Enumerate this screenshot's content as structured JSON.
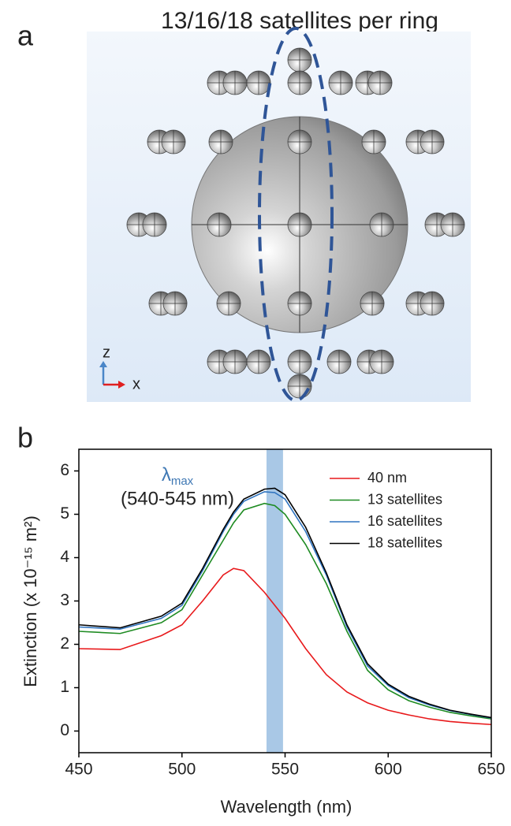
{
  "panel_a": {
    "label": "a",
    "title": "13/16/18 satellites per ring",
    "axis_z": "z",
    "axis_x": "x"
  },
  "panel_b": {
    "label": "b"
  },
  "chart_data": {
    "type": "line",
    "xlabel": "Wavelength (nm)",
    "ylabel": "Extinction (x 10⁻¹⁵ m²)",
    "annotation": {
      "symbol": "λ",
      "subscript": "max",
      "range": "(540-545 nm)",
      "color": "#3f78b4"
    },
    "highlight": [
      541,
      549
    ],
    "highlight_color": "#a9c8e6",
    "x": [
      450,
      470,
      490,
      500,
      510,
      520,
      525,
      530,
      540,
      545,
      550,
      560,
      570,
      580,
      590,
      600,
      610,
      620,
      630,
      640,
      650
    ],
    "series": [
      {
        "name": "40 nm",
        "color": "#e8191b",
        "values": [
          1.9,
          1.88,
          2.2,
          2.45,
          3.0,
          3.6,
          3.75,
          3.7,
          3.2,
          2.9,
          2.6,
          1.9,
          1.3,
          0.9,
          0.65,
          0.48,
          0.37,
          0.28,
          0.22,
          0.18,
          0.15
        ]
      },
      {
        "name": "13 satellites",
        "color": "#1e8b22",
        "values": [
          2.3,
          2.25,
          2.5,
          2.8,
          3.6,
          4.4,
          4.8,
          5.1,
          5.25,
          5.2,
          5.0,
          4.3,
          3.4,
          2.3,
          1.4,
          0.95,
          0.7,
          0.55,
          0.43,
          0.35,
          0.28
        ]
      },
      {
        "name": "16 satellites",
        "color": "#2f74c0",
        "values": [
          2.4,
          2.35,
          2.6,
          2.9,
          3.7,
          4.6,
          5.0,
          5.3,
          5.52,
          5.5,
          5.35,
          4.6,
          3.6,
          2.4,
          1.5,
          1.05,
          0.77,
          0.6,
          0.47,
          0.38,
          0.3
        ]
      },
      {
        "name": "18 satellites",
        "color": "#000000",
        "values": [
          2.45,
          2.38,
          2.65,
          2.95,
          3.75,
          4.65,
          5.05,
          5.35,
          5.58,
          5.6,
          5.45,
          4.7,
          3.65,
          2.45,
          1.55,
          1.08,
          0.8,
          0.62,
          0.48,
          0.39,
          0.31
        ]
      }
    ],
    "xlim": [
      450,
      650
    ],
    "xticks": [
      450,
      500,
      550,
      600,
      650
    ],
    "ylim": [
      -0.5,
      6.5
    ],
    "yticks": [
      0,
      1,
      2,
      3,
      4,
      5,
      6
    ],
    "legend": "upper right"
  }
}
